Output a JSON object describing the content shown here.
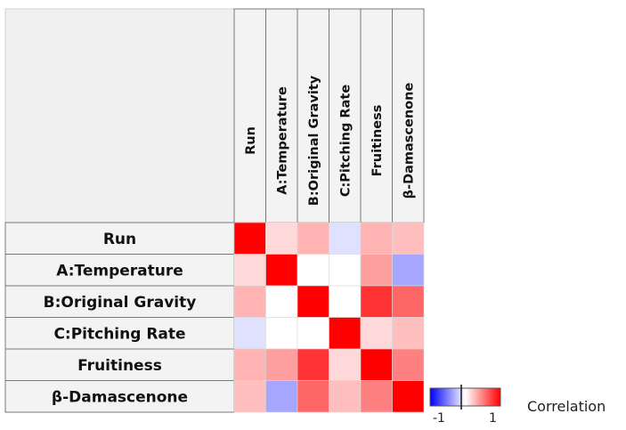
{
  "chart_data": {
    "type": "heatmap",
    "variables": [
      "Run",
      "A:Temperature",
      "B:Original Gravity",
      "C:Pitching Rate",
      "Fruitiness",
      "β-Damascenone"
    ],
    "matrix": [
      [
        1.0,
        0.15,
        0.3,
        -0.12,
        0.3,
        0.25
      ],
      [
        0.15,
        1.0,
        0.0,
        0.0,
        0.38,
        -0.35
      ],
      [
        0.3,
        0.0,
        1.0,
        0.0,
        0.8,
        0.6
      ],
      [
        -0.12,
        0.0,
        0.0,
        1.0,
        0.15,
        0.25
      ],
      [
        0.3,
        0.38,
        0.8,
        0.15,
        1.0,
        0.5
      ],
      [
        0.25,
        -0.35,
        0.6,
        0.25,
        0.5,
        1.0
      ]
    ],
    "value_range": [
      -1,
      1
    ],
    "colors": {
      "negative": "#0000ff",
      "zero": "#ffffff",
      "positive": "#ff0000"
    },
    "legend": {
      "title": "Correlation",
      "min_label": "-1",
      "max_label": "1"
    }
  }
}
